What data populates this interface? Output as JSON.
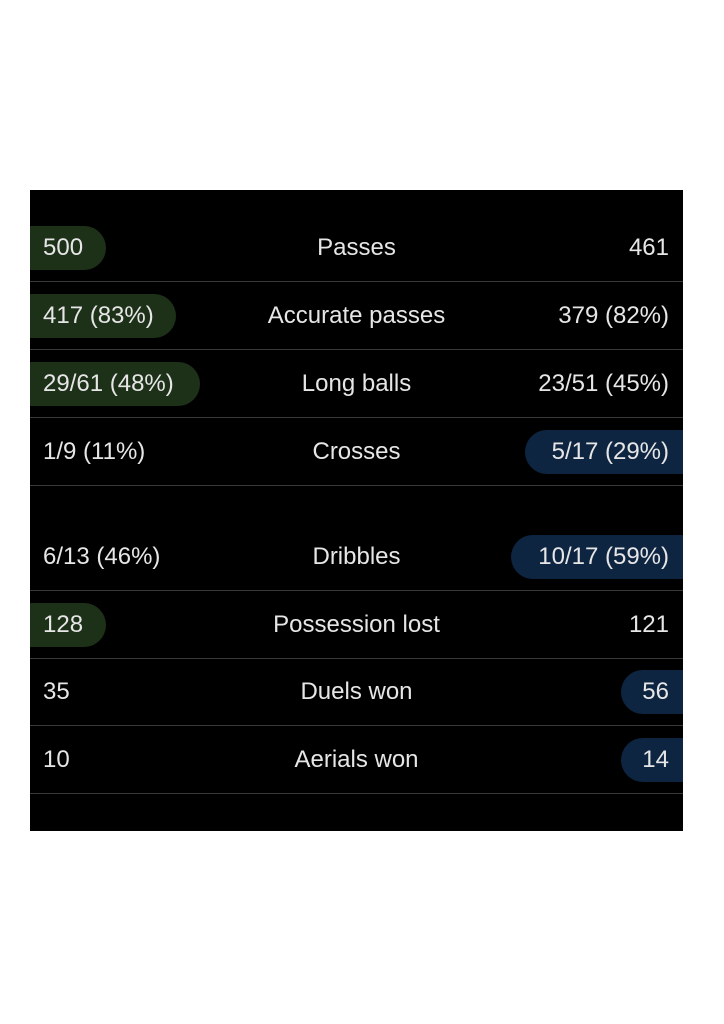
{
  "colors": {
    "panel_background": "#000000",
    "text": "#e6e6e6",
    "divider": "#3a3a3a",
    "home_highlight": "#1d3018",
    "away_highlight": "#0e2542"
  },
  "stats": [
    {
      "label": "Passes",
      "home": "500",
      "away": "461",
      "highlight": "home"
    },
    {
      "label": "Accurate passes",
      "home": "417 (83%)",
      "away": "379 (82%)",
      "highlight": "home"
    },
    {
      "label": "Long balls",
      "home": "29/61 (48%)",
      "away": "23/51 (45%)",
      "highlight": "home"
    },
    {
      "label": "Crosses",
      "home": "1/9 (11%)",
      "away": "5/17 (29%)",
      "highlight": "away"
    },
    {
      "label": "Dribbles",
      "home": "6/13 (46%)",
      "away": "10/17 (59%)",
      "highlight": "away"
    },
    {
      "label": "Possession lost",
      "home": "128",
      "away": "121",
      "highlight": "home"
    },
    {
      "label": "Duels won",
      "home": "35",
      "away": "56",
      "highlight": "away"
    },
    {
      "label": "Aerials won",
      "home": "10",
      "away": "14",
      "highlight": "away"
    }
  ]
}
